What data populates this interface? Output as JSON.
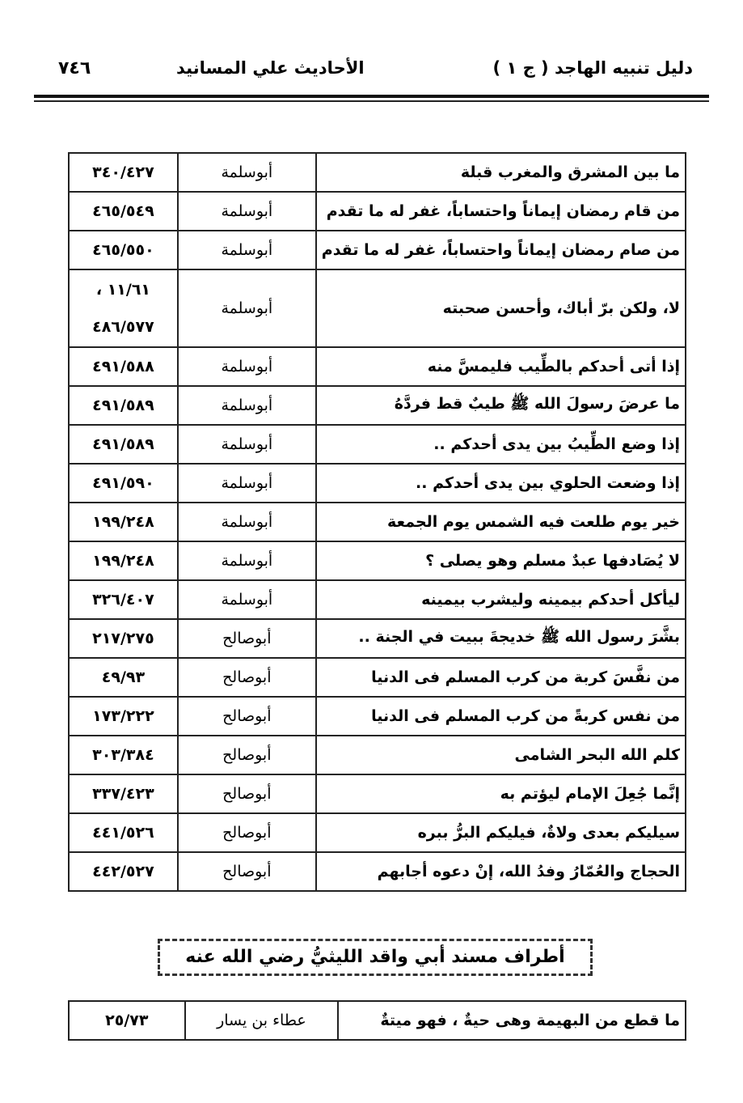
{
  "header": {
    "book_title": "دليل تنبيه الهاجد ( ج ١ )",
    "section_title": "الأحاديث علي المسانيد",
    "page_number": "٧٤٦"
  },
  "table1": {
    "rows": [
      {
        "hadith": "ما بين المشرق والمغرب قبلة",
        "narrator": "أبوسلمة",
        "ref": [
          "٣٤٠/٤٢٧"
        ]
      },
      {
        "hadith": "من قام رمضان إيماناً واحتساباً، غفر له ما تقدم",
        "narrator": "أبوسلمة",
        "ref": [
          "٤٦٥/٥٤٩"
        ]
      },
      {
        "hadith": "من صام رمضان إيماناً واحتساباً، غفر له ما تقدم",
        "narrator": "أبوسلمة",
        "ref": [
          "٤٦٥/٥٥٠"
        ]
      },
      {
        "hadith": "لا، ولكن برّ أباك، وأحسن صحبته",
        "narrator": "أبوسلمة",
        "ref": [
          "١١/٦١ ،",
          "٤٨٦/٥٧٧"
        ]
      },
      {
        "hadith": "إذا أتى أحدكم بالطِّيب فليمسَّ منه",
        "narrator": "أبوسلمة",
        "ref": [
          "٤٩١/٥٨٨"
        ]
      },
      {
        "hadith": "ما عرضَ رسولَ الله ﷺ طيبٌ قط فردَّهُ",
        "narrator": "أبوسلمة",
        "ref": [
          "٤٩١/٥٨٩"
        ]
      },
      {
        "hadith": "إذا وضع الطِّيبُ بين يدى أحدكم ..",
        "narrator": "أبوسلمة",
        "ref": [
          "٤٩١/٥٨٩"
        ]
      },
      {
        "hadith": "إذا وضعت الحلوي بين يدى أحدكم ..",
        "narrator": "أبوسلمة",
        "ref": [
          "٤٩١/٥٩٠"
        ]
      },
      {
        "hadith": "خير يوم طلعت فيه الشمس يوم الجمعة",
        "narrator": "أبوسلمة",
        "ref": [
          "١٩٩/٢٤٨"
        ]
      },
      {
        "hadith": "لا يُصَادفها عبدٌ مسلم وهو يصلى ؟",
        "narrator": "أبوسلمة",
        "ref": [
          "١٩٩/٢٤٨"
        ]
      },
      {
        "hadith": "ليأكل أحدكم بيمينه وليشرب بيمينه",
        "narrator": "أبوسلمة",
        "ref": [
          "٣٢٦/٤٠٧"
        ]
      },
      {
        "hadith": "بشَّرَ رسول الله ﷺ خديجةَ ببيت في الجنة ..",
        "narrator": "أبوصالح",
        "ref": [
          "٢١٧/٢٧٥"
        ]
      },
      {
        "hadith": "من نفَّسَ كربة من كرب المسلم فى الدنيا",
        "narrator": "أبوصالح",
        "ref": [
          "٤٩/٩٣"
        ]
      },
      {
        "hadith": "من نفس كربةً من كرب المسلم فى الدنيا",
        "narrator": "أبوصالح",
        "ref": [
          "١٧٣/٢٢٢"
        ]
      },
      {
        "hadith": "كلم الله البحر الشامى",
        "narrator": "أبوصالح",
        "ref": [
          "٣٠٣/٣٨٤"
        ]
      },
      {
        "hadith": "إنَّما جُعِلَ الإمام ليؤتم به",
        "narrator": "أبوصالح",
        "ref": [
          "٣٣٧/٤٢٣"
        ]
      },
      {
        "hadith": "سيليكم بعدى ولاةٌ، فيليكم البرُّ ببره",
        "narrator": "أبوصالح",
        "ref": [
          "٤٤١/٥٢٦"
        ]
      },
      {
        "hadith": "الحجاج والعُمّارُ وفدُ الله، إنْ دعوه أجابهم",
        "narrator": "أبوصالح",
        "ref": [
          "٤٤٢/٥٢٧"
        ]
      }
    ]
  },
  "section_heading": "أطراف مسند أبي واقد الليثيُّ رضي الله عنه",
  "table2": {
    "rows": [
      {
        "hadith": "ما قطع من البهيمة وهى حيةٌ ، فهو ميتةٌ",
        "narrator": "عطاء بن يسار",
        "ref": [
          "٢٥/٧٣"
        ]
      }
    ]
  }
}
